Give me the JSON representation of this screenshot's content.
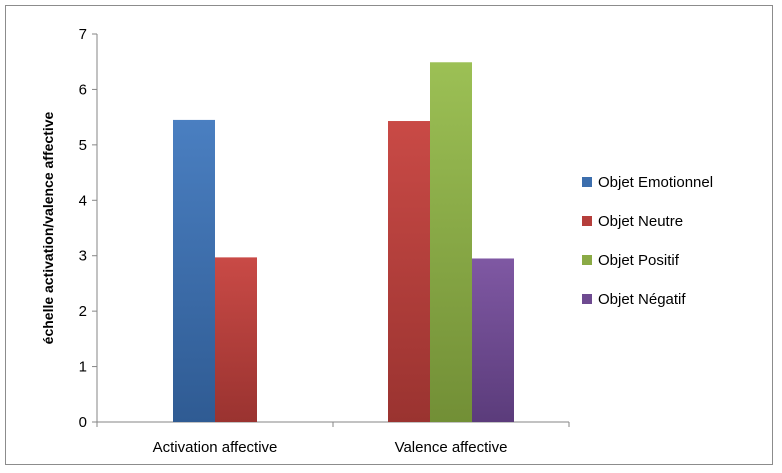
{
  "chart_data": {
    "type": "bar",
    "title": "",
    "xlabel": "",
    "ylabel": "échelle activation/valence affective",
    "ylim": [
      0,
      7
    ],
    "yticks": [
      "0",
      "1",
      "2",
      "3",
      "4",
      "5",
      "6",
      "7"
    ],
    "grid": false,
    "legend_position": "right",
    "categories": [
      "Activation affective",
      "Valence affective"
    ],
    "series": [
      {
        "name": "Objet Emotionnel",
        "color": "#3c6ead",
        "values": [
          5.45,
          null
        ]
      },
      {
        "name": "Objet Neutre",
        "color": "#b53e3b",
        "values": [
          2.97,
          5.43
        ]
      },
      {
        "name": "Objet Positif",
        "color": "#8aaa45",
        "values": [
          null,
          6.49
        ]
      },
      {
        "name": "Objet Négatif",
        "color": "#6e4a90",
        "values": [
          null,
          2.95
        ]
      }
    ]
  }
}
